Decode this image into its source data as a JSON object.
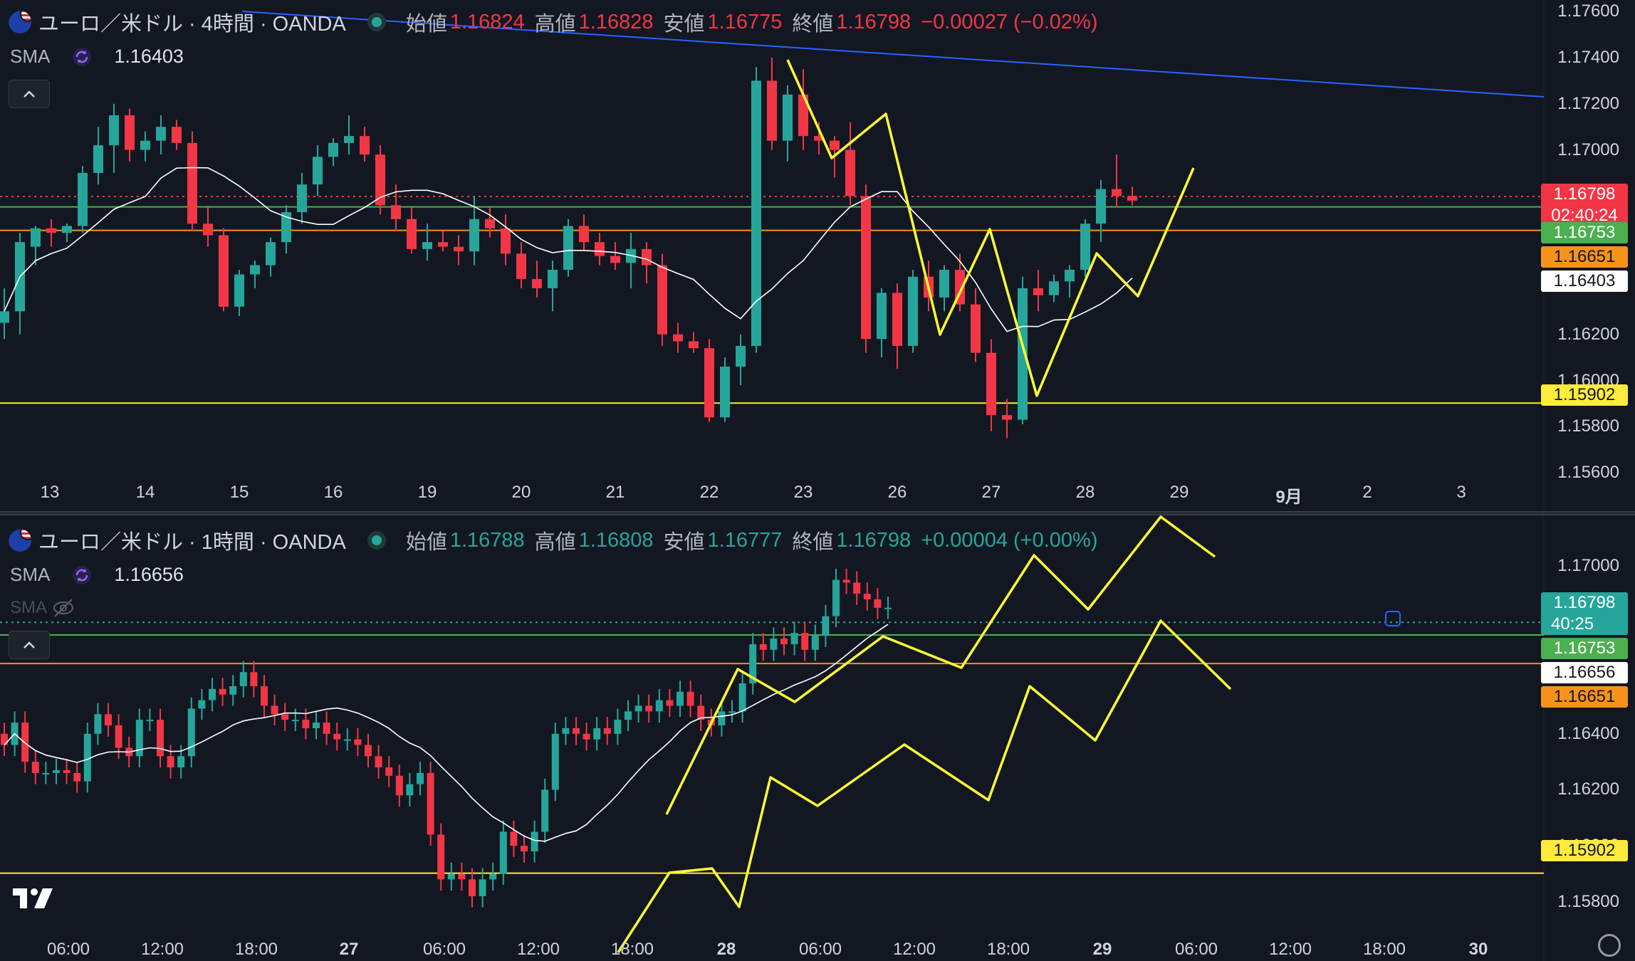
{
  "panes": [
    {
      "id": "h4",
      "symbol": "ユーロ／米ドル · 4時間 · OANDA",
      "ohlc": {
        "open_label": "始値",
        "open": "1.16824",
        "high_label": "高値",
        "high": "1.16828",
        "low_label": "安値",
        "low": "1.16775",
        "close_label": "終値",
        "close": "1.16798",
        "change": "−0.00027 (−0.02%)",
        "direction": "down"
      },
      "sma": {
        "label": "SMA",
        "value": "1.16403"
      },
      "collapse_icon": "chevron-up-icon",
      "y_ticks": [
        "1.17600",
        "1.17400",
        "1.17200",
        "1.17000",
        "1.16200",
        "1.16000",
        "1.15800",
        "1.15600"
      ],
      "price_tags": [
        {
          "value": "1.16798",
          "sub": "02:40:24",
          "color": "#f23645",
          "text_color": "#ffffff"
        },
        {
          "value": "1.16753",
          "color": "#4caf50",
          "text_color": "#ffffff"
        },
        {
          "value": "1.16651",
          "color": "#f7931a",
          "text_color": "#131722"
        },
        {
          "value": "1.16403",
          "color": "#ffffff",
          "text_color": "#131722"
        },
        {
          "value": "1.15902",
          "color": "#ffeb3b",
          "text_color": "#131722"
        }
      ],
      "x_ticks": [
        "13",
        "14",
        "15",
        "16",
        "19",
        "20",
        "21",
        "22",
        "23",
        "26",
        "27",
        "28",
        "29",
        "9月",
        "2",
        "3"
      ]
    },
    {
      "id": "h1",
      "symbol": "ユーロ／米ドル · 1時間 · OANDA",
      "ohlc": {
        "open_label": "始値",
        "open": "1.16788",
        "high_label": "高値",
        "high": "1.16808",
        "low_label": "安値",
        "low": "1.16777",
        "close_label": "終値",
        "close": "1.16798",
        "change": "+0.00004 (+0.00%)",
        "direction": "up"
      },
      "sma": {
        "label": "SMA",
        "value": "1.16656"
      },
      "sma_hidden": {
        "label": "SMA",
        "icon": "eye-off-icon"
      },
      "collapse_icon": "chevron-up-icon",
      "y_ticks": [
        "1.17000",
        "1.16400",
        "1.16200",
        "1.16000",
        "1.15800"
      ],
      "price_tags": [
        {
          "value": "1.16798",
          "sub": "40:25",
          "color": "#26a69a",
          "text_color": "#ffffff"
        },
        {
          "value": "1.16753",
          "color": "#4caf50",
          "text_color": "#ffffff"
        },
        {
          "value": "1.16656",
          "color": "#ffffff",
          "text_color": "#131722"
        },
        {
          "value": "1.16651",
          "color": "#f7931a",
          "text_color": "#131722"
        },
        {
          "value": "1.15902",
          "color": "#ffeb3b",
          "text_color": "#131722"
        }
      ],
      "x_ticks": [
        "06:00",
        "12:00",
        "18:00",
        "27",
        "06:00",
        "12:00",
        "18:00",
        "28",
        "06:00",
        "12:00",
        "18:00",
        "29",
        "06:00",
        "12:00",
        "18:00",
        "30"
      ]
    }
  ],
  "logo_icon": "tradingview-logo",
  "settings_icon": "gear-icon",
  "colors": {
    "up": "#26a69a",
    "down": "#f23645",
    "background": "#131722",
    "level_yellow": "#ffeb3b",
    "level_orange": "#f7931a",
    "level_green": "#4caf50",
    "trendline_blue": "#2962ff",
    "sma": "#ffffff",
    "drawing": "#ffff33"
  },
  "chart_data": [
    {
      "type": "candlestick",
      "title": "ユーロ／米ドル · 4時間 · OANDA",
      "ylim": [
        1.1552,
        1.1765
      ],
      "x": [
        "13",
        "14",
        "15",
        "16",
        "19",
        "20",
        "21",
        "22",
        "23",
        "26",
        "27",
        "28",
        "29",
        "9月",
        "2",
        "3"
      ],
      "candles": [
        [
          1.1625,
          1.164,
          1.1618,
          1.163
        ],
        [
          1.163,
          1.1664,
          1.162,
          1.166
        ],
        [
          1.1658,
          1.1667,
          1.165,
          1.1666
        ],
        [
          1.1666,
          1.167,
          1.1658,
          1.1664
        ],
        [
          1.1664,
          1.1668,
          1.166,
          1.1667
        ],
        [
          1.1667,
          1.1693,
          1.1664,
          1.169
        ],
        [
          1.169,
          1.171,
          1.1685,
          1.1702
        ],
        [
          1.1702,
          1.172,
          1.169,
          1.1715
        ],
        [
          1.1715,
          1.1718,
          1.1695,
          1.17
        ],
        [
          1.17,
          1.1708,
          1.1695,
          1.1704
        ],
        [
          1.1704,
          1.1715,
          1.1698,
          1.171
        ],
        [
          1.171,
          1.1713,
          1.17,
          1.1703
        ],
        [
          1.1703,
          1.1708,
          1.1665,
          1.1668
        ],
        [
          1.1668,
          1.1675,
          1.1658,
          1.1663
        ],
        [
          1.1663,
          1.1666,
          1.163,
          1.1632
        ],
        [
          1.1632,
          1.1648,
          1.1628,
          1.1646
        ],
        [
          1.1646,
          1.1652,
          1.164,
          1.165
        ],
        [
          1.165,
          1.1662,
          1.1645,
          1.166
        ],
        [
          1.166,
          1.1676,
          1.1655,
          1.1673
        ],
        [
          1.1673,
          1.169,
          1.1668,
          1.1685
        ],
        [
          1.1685,
          1.1702,
          1.168,
          1.1697
        ],
        [
          1.1697,
          1.1705,
          1.1693,
          1.1703
        ],
        [
          1.1703,
          1.1715,
          1.1698,
          1.1706
        ],
        [
          1.1706,
          1.171,
          1.1695,
          1.1698
        ],
        [
          1.1698,
          1.1702,
          1.1672,
          1.1676
        ],
        [
          1.1676,
          1.1685,
          1.1665,
          1.167
        ],
        [
          1.167,
          1.1675,
          1.1655,
          1.1657
        ],
        [
          1.1657,
          1.1668,
          1.1652,
          1.166
        ],
        [
          1.166,
          1.1665,
          1.1656,
          1.1658
        ],
        [
          1.1658,
          1.1663,
          1.165,
          1.1656
        ],
        [
          1.1656,
          1.168,
          1.165,
          1.167
        ],
        [
          1.167,
          1.1675,
          1.1662,
          1.1666
        ],
        [
          1.1666,
          1.1672,
          1.165,
          1.1655
        ],
        [
          1.1655,
          1.166,
          1.164,
          1.1644
        ],
        [
          1.1644,
          1.1652,
          1.1636,
          1.164
        ],
        [
          1.164,
          1.1652,
          1.163,
          1.1648
        ],
        [
          1.1648,
          1.167,
          1.1645,
          1.1667
        ],
        [
          1.1667,
          1.1672,
          1.1656,
          1.166
        ],
        [
          1.166,
          1.1664,
          1.165,
          1.1654
        ],
        [
          1.1654,
          1.166,
          1.1648,
          1.1651
        ],
        [
          1.1651,
          1.1664,
          1.164,
          1.1657
        ],
        [
          1.1657,
          1.166,
          1.1642,
          1.165
        ],
        [
          1.165,
          1.1655,
          1.1615,
          1.162
        ],
        [
          1.162,
          1.1625,
          1.1612,
          1.1617
        ],
        [
          1.1617,
          1.1621,
          1.1612,
          1.1614
        ],
        [
          1.1614,
          1.1618,
          1.1582,
          1.1584
        ],
        [
          1.1584,
          1.161,
          1.1582,
          1.1606
        ],
        [
          1.1606,
          1.162,
          1.1598,
          1.1615
        ],
        [
          1.1615,
          1.1736,
          1.1612,
          1.173
        ],
        [
          1.173,
          1.174,
          1.17,
          1.1704
        ],
        [
          1.1704,
          1.1728,
          1.1695,
          1.1724
        ],
        [
          1.1724,
          1.1735,
          1.17,
          1.1706
        ],
        [
          1.1706,
          1.1712,
          1.1698,
          1.1704
        ],
        [
          1.1704,
          1.1706,
          1.1688,
          1.17
        ],
        [
          1.17,
          1.1712,
          1.1676,
          1.168
        ],
        [
          1.168,
          1.1685,
          1.1612,
          1.1618
        ],
        [
          1.1618,
          1.164,
          1.161,
          1.1638
        ],
        [
          1.1638,
          1.1642,
          1.1605,
          1.1615
        ],
        [
          1.1615,
          1.1648,
          1.1612,
          1.1645
        ],
        [
          1.1645,
          1.1652,
          1.163,
          1.1636
        ],
        [
          1.1636,
          1.165,
          1.163,
          1.1648
        ],
        [
          1.1648,
          1.1655,
          1.163,
          1.1633
        ],
        [
          1.1633,
          1.164,
          1.1608,
          1.1612
        ],
        [
          1.1612,
          1.1618,
          1.1578,
          1.1585
        ],
        [
          1.1585,
          1.1592,
          1.1575,
          1.1583
        ],
        [
          1.1583,
          1.1645,
          1.1581,
          1.164
        ],
        [
          1.164,
          1.1648,
          1.163,
          1.1637
        ],
        [
          1.1637,
          1.1646,
          1.1634,
          1.1643
        ],
        [
          1.1643,
          1.165,
          1.1636,
          1.1648
        ],
        [
          1.1648,
          1.167,
          1.1645,
          1.1668
        ],
        [
          1.1668,
          1.1687,
          1.166,
          1.1683
        ],
        [
          1.1683,
          1.1698,
          1.1675,
          1.168
        ],
        [
          1.168,
          1.1684,
          1.1676,
          1.1678
        ]
      ],
      "sma_value_last": 1.16403,
      "levels": [
        {
          "value": 1.16798,
          "style": "dotted",
          "color": "#f23645"
        },
        {
          "value": 1.16753,
          "style": "solid",
          "color": "#4caf50"
        },
        {
          "value": 1.16651,
          "style": "solid",
          "color": "#f7931a"
        },
        {
          "value": 1.15902,
          "style": "solid",
          "color": "#ffeb3b"
        }
      ]
    },
    {
      "type": "candlestick",
      "title": "ユーロ／米ドル · 1時間 · OANDA",
      "ylim": [
        1.1568,
        1.1718
      ],
      "x": [
        "06:00",
        "12:00",
        "18:00",
        "27",
        "06:00",
        "12:00",
        "18:00",
        "28",
        "06:00",
        "12:00",
        "18:00",
        "29",
        "06:00",
        "12:00",
        "18:00",
        "30"
      ],
      "sma_value_last": 1.16656,
      "levels": [
        {
          "value": 1.16798,
          "style": "dotted",
          "color": "#26a69a"
        },
        {
          "value": 1.16753,
          "style": "solid",
          "color": "#4caf50"
        },
        {
          "value": 1.16651,
          "style": "solid",
          "color": "#f7931a"
        },
        {
          "value": 1.15902,
          "style": "solid",
          "color": "#ffeb3b"
        }
      ]
    }
  ]
}
